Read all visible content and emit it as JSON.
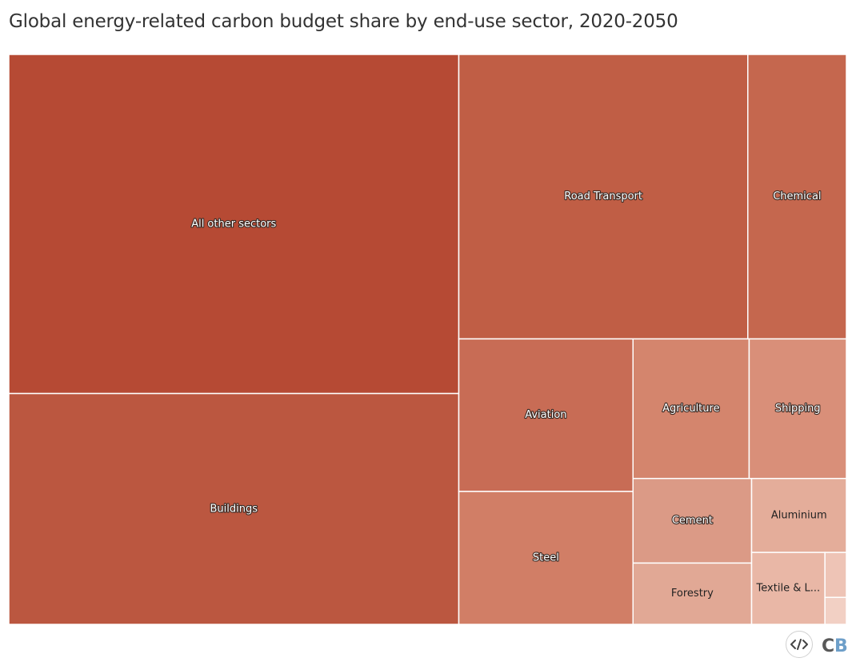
{
  "chart_data": {
    "type": "treemap",
    "title": "Global energy-related carbon budget share by end-use sector, 2020-2050",
    "units": "relative share (estimated from tile area)",
    "items": [
      {
        "label": "All other sectors",
        "value": 237.2,
        "color": "#b64a34"
      },
      {
        "label": "Buildings",
        "value": 161.5,
        "color": "#bb5740"
      },
      {
        "label": "Road Transport",
        "value": 127.8,
        "color": "#c05e45"
      },
      {
        "label": "Chemical",
        "value": 43.6,
        "color": "#c5674e"
      },
      {
        "label": "Aviation",
        "value": 41.3,
        "color": "#c86c55"
      },
      {
        "label": "Steel",
        "value": 36.0,
        "color": "#d17e66"
      },
      {
        "label": "Agriculture",
        "value": 25.2,
        "color": "#d4856d"
      },
      {
        "label": "Shipping",
        "value": 21.1,
        "color": "#d98f79"
      },
      {
        "label": "Cement",
        "value": 15.6,
        "color": "#db9a86"
      },
      {
        "label": "Forestry",
        "value": 11.3,
        "color": "#e1a895"
      },
      {
        "label": "Aluminium",
        "value": 10.9,
        "color": "#e4ad9a"
      },
      {
        "label": "Textile & L...",
        "value": 8.2,
        "color": "#e9b7a6"
      },
      {
        "label": "",
        "value": 1.5,
        "color": "#eec4b6"
      },
      {
        "label": "",
        "value": 0.9,
        "color": "#f2d0c4"
      }
    ]
  },
  "footer": {
    "embed_icon": "code-icon",
    "embed_glyph": "</>",
    "brand_logo_text": "CB",
    "brand_colors": {
      "c": "#595959",
      "b": "#6e9fc9"
    }
  }
}
